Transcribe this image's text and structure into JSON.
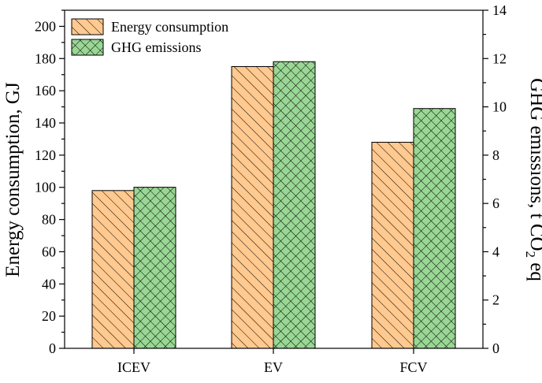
{
  "chart_data": {
    "type": "bar",
    "categories": [
      "ICEV",
      "EV",
      "FCV"
    ],
    "series": [
      {
        "name": "Energy consumption",
        "axis": "left",
        "values": [
          98,
          175,
          128
        ],
        "color": "#ffc98f",
        "pattern": "diagonal-hatch"
      },
      {
        "name": "GHG emissions",
        "axis": "right",
        "values": [
          6.67,
          11.87,
          9.93
        ],
        "color": "#99d794",
        "pattern": "crosshatch"
      }
    ],
    "ylabel_left": "Energy consumption, GJ",
    "ylabel_right": {
      "before": "GHG emissions, t CO",
      "subscript": "2",
      "after": " eq"
    },
    "ylim_left": [
      0,
      210
    ],
    "yticks_left": [
      0,
      20,
      40,
      60,
      80,
      100,
      120,
      140,
      160,
      180,
      200
    ],
    "ylim_right": [
      0,
      14
    ],
    "yticks_right": [
      0,
      2,
      4,
      6,
      8,
      10,
      12,
      14
    ],
    "legend_position": "top-left",
    "grid": false
  }
}
